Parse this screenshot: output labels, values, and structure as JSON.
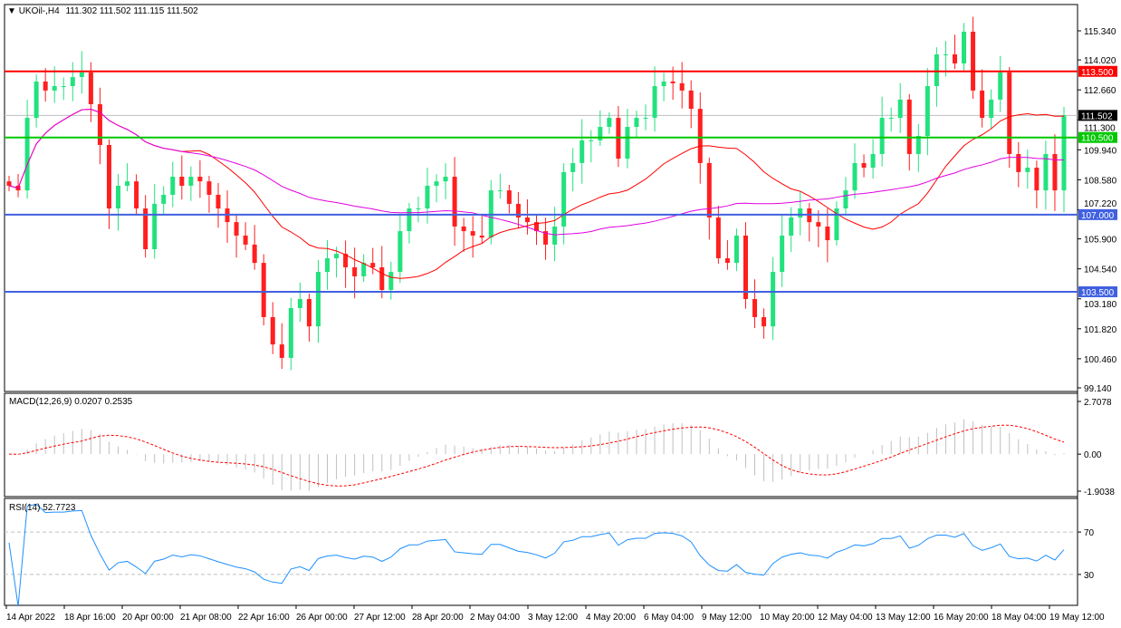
{
  "header": {
    "symbol": "UKOil-,H4",
    "ohlc": "111.302 111.502 111.115 111.502"
  },
  "colors": {
    "bull": "#22e27e",
    "bear": "#ff1f1f",
    "ma_fast": "#ff0000",
    "ma_slow": "#e000e0",
    "macd_hist": "#c0c0c0",
    "macd_signal": "#ff0000",
    "rsi": "#1e90ff"
  },
  "chart_data": {
    "type": "candlestick",
    "symbol": "UKOil-",
    "timeframe": "H4",
    "closes": [
      108.31,
      108.1,
      111.39,
      113.04,
      112.63,
      112.83,
      112.83,
      113.24,
      113.45,
      112.01,
      110.16,
      107.28,
      108.31,
      108.51,
      107.28,
      105.43,
      107.49,
      107.9,
      108.72,
      108.31,
      108.72,
      108.51,
      107.9,
      107.28,
      106.66,
      106.05,
      105.64,
      104.81,
      102.35,
      101.11,
      100.5,
      102.76,
      103.17,
      101.93,
      104.4,
      105.02,
      105.22,
      104.61,
      104.2,
      104.81,
      104.61,
      103.58,
      104.4,
      106.25,
      107.28,
      107.28,
      108.31,
      108.51,
      108.72,
      106.46,
      106.25,
      106.05,
      105.96,
      108.1,
      108.1,
      107.49,
      106.87,
      106.66,
      106.25,
      105.64,
      106.46,
      108.93,
      109.34,
      110.37,
      110.37,
      110.98,
      111.39,
      109.54,
      110.98,
      111.39,
      111.39,
      112.83,
      113.04,
      112.96,
      112.63,
      111.8,
      109.34,
      106.87,
      105.02,
      104.81,
      106.05,
      103.17,
      102.35,
      101.93,
      104.4,
      106.05,
      106.87,
      107.28,
      106.66,
      106.46,
      105.84,
      107.28,
      108.1,
      109.34,
      109.13,
      109.75,
      111.39,
      111.39,
      112.22,
      109.75,
      110.57,
      112.83,
      114.27,
      114.27,
      113.86,
      115.3,
      112.63,
      111.39,
      112.22,
      113.45,
      109.75,
      108.93,
      109.13,
      108.1,
      109.75,
      108.1,
      111.5
    ],
    "price_ticks": [
      "115.340",
      "114.020",
      "112.660",
      "111.300",
      "109.940",
      "108.580",
      "107.220",
      "105.900",
      "104.540",
      "103.180",
      "101.820",
      "100.460",
      "99.140"
    ],
    "ylim": [
      99.14,
      115.34
    ],
    "time_ticks": [
      "14 Apr 2022",
      "18 Apr 16:00",
      "20 Apr 00:00",
      "21 Apr 08:00",
      "22 Apr 16:00",
      "26 Apr 00:00",
      "27 Apr 12:00",
      "28 Apr 20:00",
      "2 May 04:00",
      "3 May 12:00",
      "4 May 20:00",
      "6 May 04:00",
      "9 May 12:00",
      "10 May 20:00",
      "12 May 04:00",
      "13 May 12:00",
      "16 May 20:00",
      "18 May 04:00",
      "19 May 12:00"
    ],
    "horizontal_lines": [
      {
        "price": 113.5,
        "label": "113.500",
        "color": "#ff0000"
      },
      {
        "price": 110.5,
        "label": "110.500",
        "color": "#00c800"
      },
      {
        "price": 107.0,
        "label": "107.000",
        "color": "#4060e0"
      },
      {
        "price": 103.5,
        "label": "103.500",
        "color": "#4060e0"
      }
    ],
    "current_price": {
      "price": 111.502,
      "label": "111.502"
    },
    "moving_averages": [
      {
        "period": 20,
        "color": "#ff0000"
      },
      {
        "period": 50,
        "color": "#e000e0"
      }
    ],
    "macd": {
      "title": "MACD(12,26,9) 0.0207 0.2535",
      "fast": 12,
      "slow": 26,
      "signal": 9,
      "ticks": [
        "2.7078",
        "0.00",
        "-1.9038"
      ],
      "ylim": [
        -1.9038,
        2.7078
      ]
    },
    "rsi": {
      "title": "RSI(14) 52.7723",
      "period": 14,
      "ticks": [
        "70",
        "30"
      ],
      "levels": [
        70,
        30
      ]
    }
  }
}
